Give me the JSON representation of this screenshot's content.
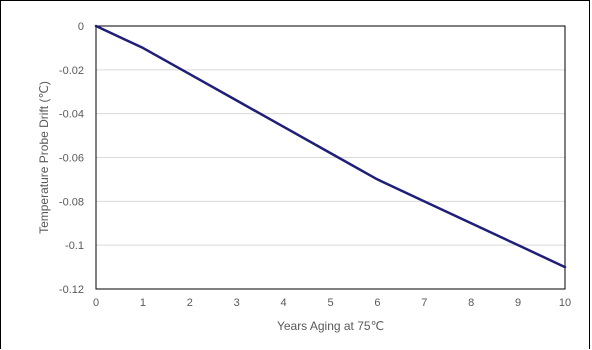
{
  "chart_data": {
    "type": "line",
    "title": "",
    "xlabel": "Years Aging at 75℃",
    "ylabel": "Temperature Probe Drift (℃)",
    "xlim": [
      0,
      10
    ],
    "ylim": [
      -0.12,
      0
    ],
    "x_ticks": [
      0,
      1,
      2,
      3,
      4,
      5,
      6,
      7,
      8,
      9,
      10
    ],
    "y_ticks": [
      0,
      -0.02,
      -0.04,
      -0.06,
      -0.08,
      -0.1,
      -0.12
    ],
    "x_tick_labels": [
      "0",
      "1",
      "2",
      "3",
      "4",
      "5",
      "6",
      "7",
      "8",
      "9",
      "10"
    ],
    "y_tick_labels": [
      "0",
      "-0.02",
      "-0.04",
      "-0.06",
      "-0.08",
      "-0.1",
      "-0.12"
    ],
    "grid": "horizontal",
    "legend": "none",
    "series": [
      {
        "color": "#1f1f7a",
        "x": [
          0,
          1,
          2,
          3,
          4,
          5,
          6,
          7,
          8,
          9,
          10
        ],
        "y": [
          0,
          -0.01,
          -0.022,
          -0.034,
          -0.046,
          -0.058,
          -0.07,
          -0.08,
          -0.09,
          -0.1,
          -0.11
        ]
      }
    ]
  }
}
